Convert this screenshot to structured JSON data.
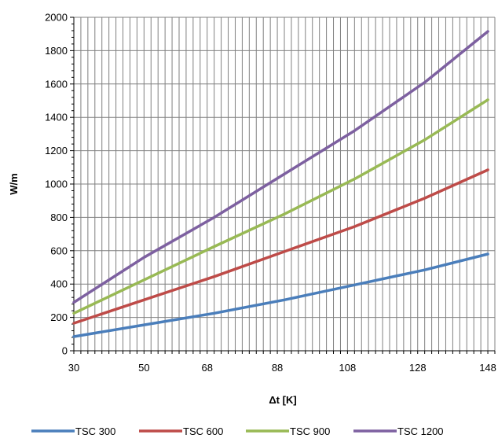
{
  "chart_data": {
    "type": "line",
    "title": "",
    "xlabel": "Δt [K]",
    "ylabel": "W/m",
    "xlim": [
      30,
      150
    ],
    "ylim": [
      0,
      2000
    ],
    "xticks": [
      30,
      50,
      68,
      88,
      108,
      128,
      148
    ],
    "yticks": [
      0,
      200,
      400,
      600,
      800,
      1000,
      1200,
      1400,
      1600,
      1800,
      2000
    ],
    "grid": true,
    "legend_position": "bottom",
    "series": [
      {
        "name": "TSC 300",
        "color": "#4a7ebb",
        "x": [
          30,
          50,
          70,
          90,
          110,
          130,
          148
        ],
        "values": [
          85,
          155,
          225,
          305,
          395,
          485,
          580
        ]
      },
      {
        "name": "TSC 600",
        "color": "#be4b48",
        "x": [
          30,
          50,
          70,
          90,
          110,
          130,
          148
        ],
        "values": [
          165,
          305,
          445,
          595,
          745,
          915,
          1085
        ]
      },
      {
        "name": "TSC 900",
        "color": "#98b954",
        "x": [
          30,
          50,
          70,
          90,
          110,
          130,
          148
        ],
        "values": [
          225,
          425,
          625,
          820,
          1030,
          1265,
          1505
        ]
      },
      {
        "name": "TSC 1200",
        "color": "#7d60a0",
        "x": [
          30,
          50,
          70,
          90,
          110,
          130,
          148
        ],
        "values": [
          290,
          560,
          800,
          1060,
          1320,
          1610,
          1915
        ]
      }
    ]
  }
}
